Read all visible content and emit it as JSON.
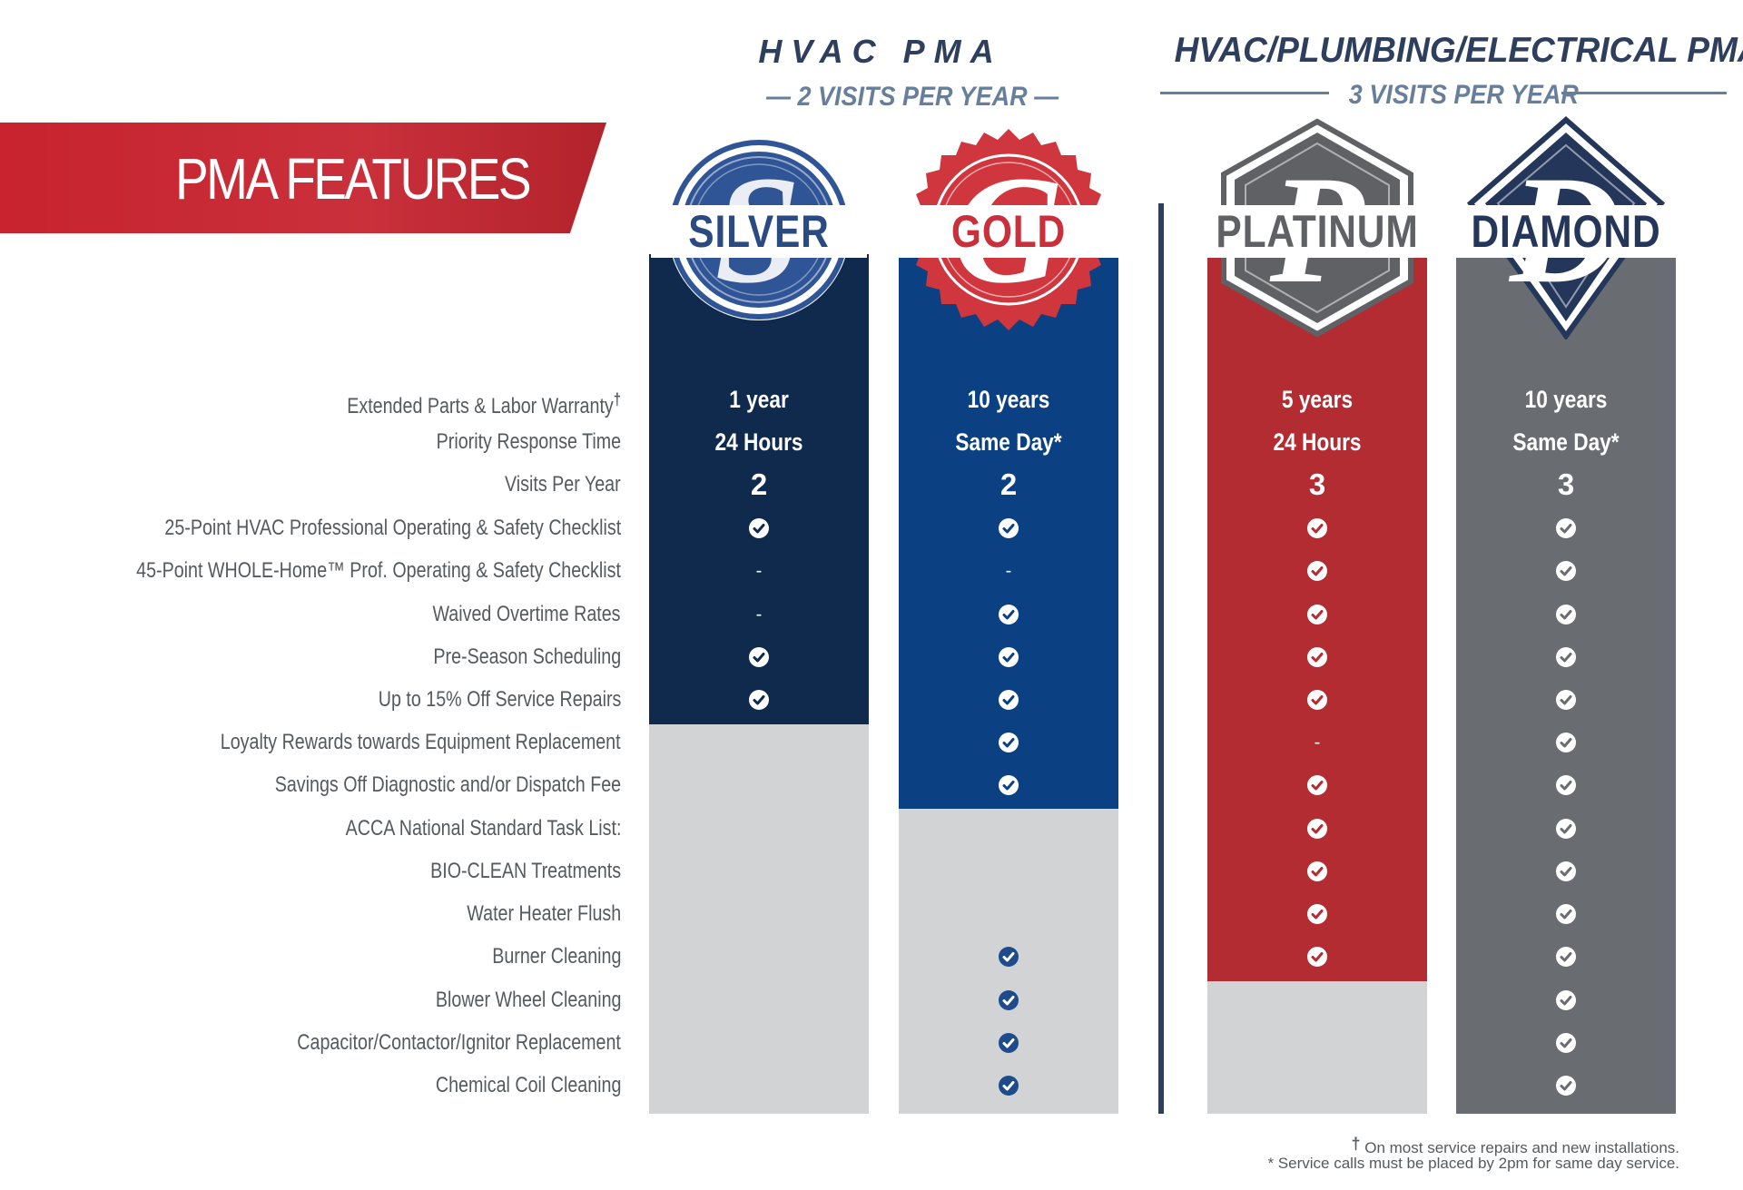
{
  "header": {
    "hvac_title": "HVAC PMA",
    "hvac_visits": "— 2 VISITS PER YEAR —",
    "hpe_title": "HVAC/PLUMBING/ELECTRICAL PMA",
    "hpe_visits": "3 VISITS PER YEAR"
  },
  "banner": {
    "title": "PMA FEATURES"
  },
  "plans": [
    {
      "name": "SILVER",
      "logo_letter": "S",
      "color": "#0f2a4d"
    },
    {
      "name": "GOLD",
      "logo_letter": "G",
      "color": "#0b4182"
    },
    {
      "name": "PLATINUM",
      "logo_letter": "P",
      "color": "#b22c32"
    },
    {
      "name": "DIAMOND",
      "logo_letter": "D",
      "color": "#696d72"
    }
  ],
  "features": [
    {
      "label": "Extended Parts & Labor Warranty",
      "mark": "†"
    },
    {
      "label": "Priority Response Time"
    },
    {
      "label": "Visits Per Year"
    },
    {
      "label": "25-Point HVAC Professional Operating & Safety Checklist"
    },
    {
      "label": "45-Point WHOLE-Home™ Prof. Operating & Safety Checklist"
    },
    {
      "label": "Waived Overtime Rates"
    },
    {
      "label": "Pre-Season Scheduling"
    },
    {
      "label": "Up to 15% Off Service Repairs"
    },
    {
      "label": "Loyalty Rewards towards Equipment Replacement"
    },
    {
      "label": "Savings Off Diagnostic and/or Dispatch Fee"
    },
    {
      "label": "ACCA National Standard Task List:"
    },
    {
      "label": "BIO-CLEAN Treatments"
    },
    {
      "label": "Water Heater Flush"
    },
    {
      "label": "Burner Cleaning"
    },
    {
      "label": "Blower Wheel Cleaning"
    },
    {
      "label": "Capacitor/Contactor/Ignitor Replacement"
    },
    {
      "label": "Chemical Coil Cleaning"
    }
  ],
  "values": {
    "silver": [
      "1 year",
      "24 Hours",
      "2",
      "check",
      "-",
      "-",
      "check",
      "check",
      "",
      "",
      "",
      "",
      "",
      "",
      "",
      "",
      ""
    ],
    "gold": [
      "10 years",
      "Same Day*",
      "2",
      "check",
      "-",
      "check",
      "check",
      "check",
      "check",
      "check",
      "",
      "",
      "",
      "check",
      "check",
      "check",
      "check"
    ],
    "platinum": [
      "5 years",
      "24 Hours",
      "3",
      "check",
      "check",
      "check",
      "check",
      "check",
      "-",
      "check",
      "check",
      "check",
      "check",
      "check",
      "",
      "",
      ""
    ],
    "diamond": [
      "10 years",
      "Same Day*",
      "3",
      "check",
      "check",
      "check",
      "check",
      "check",
      "check",
      "check",
      "check",
      "check",
      "check",
      "check",
      "check",
      "check",
      "check"
    ]
  },
  "footnotes": {
    "dagger_mark": "†",
    "dagger": "On most service repairs and new installations.",
    "asterisk": "* Service calls must be placed by 2pm for same day service."
  },
  "colors": {
    "banner_red": "#c8232e",
    "navy": "#2e3f5e",
    "slate": "#677f9b",
    "light_gray": "#d2d3d5",
    "check_blue": "#1e4b8c"
  }
}
